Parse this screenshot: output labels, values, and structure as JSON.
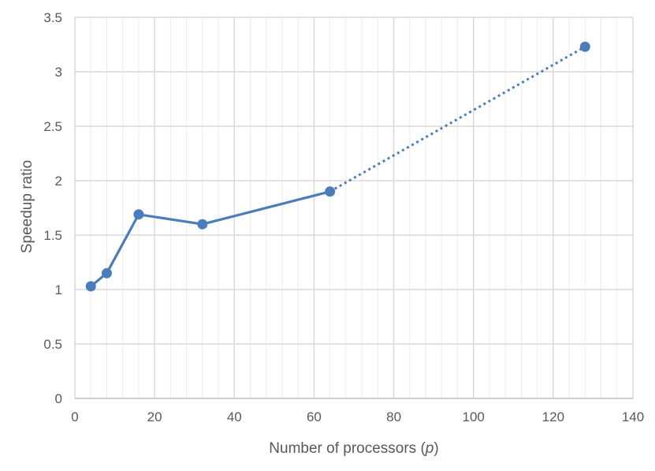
{
  "chart_data": {
    "type": "line",
    "title": "",
    "xlabel": "Number of processors (",
    "xlabel_var": "p",
    "xlabel_end": ")",
    "ylabel": "Speedup ratio",
    "xlim": [
      0,
      140
    ],
    "ylim": [
      0,
      3.5
    ],
    "x_ticks": [
      0,
      20,
      40,
      60,
      80,
      100,
      120,
      140
    ],
    "x_tick_labels": [
      "0",
      "20",
      "40",
      "60",
      "80",
      "100",
      "120",
      "140"
    ],
    "y_ticks": [
      0,
      0.5,
      1,
      1.5,
      2,
      2.5,
      3,
      3.5
    ],
    "y_tick_labels": [
      "0",
      "0.5",
      "1",
      "1.5",
      "2",
      "2.5",
      "3",
      "3.5"
    ],
    "x_minor_step": 4,
    "grid": true,
    "legend": "none",
    "series": [
      {
        "x": [
          4,
          8,
          16,
          32,
          64,
          128
        ],
        "y": [
          1.03,
          1.15,
          1.69,
          1.6,
          1.9,
          3.23
        ],
        "color": "#4a7ebb",
        "solid_until_index": 4,
        "dashed_segment": [
          64,
          128
        ]
      }
    ]
  }
}
